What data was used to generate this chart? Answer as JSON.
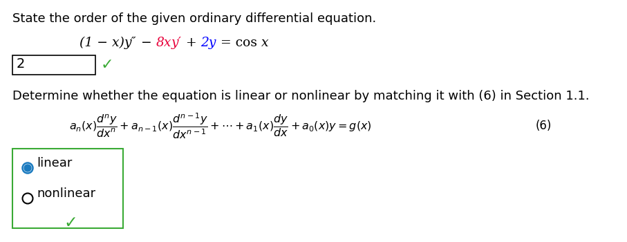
{
  "bg_color": "#ffffff",
  "title_text": "State the order of the given ordinary differential equation.",
  "title_fontsize": 13,
  "checkmark_color": "#3aaa35",
  "determine_text": "Determine whether the equation is linear or nonlinear by matching it with (6) in Section 1.1.",
  "determine_fontsize": 13,
  "linear_label": "linear",
  "nonlinear_label": "nonlinear",
  "radio_selected_color": "#1a7abf",
  "box_border_color": "#3aaa35",
  "red_color": "#e8003a",
  "blue_color": "#0000ff",
  "black_color": "#000000",
  "eq_parts": [
    {
      "text": "(1 − x)",
      "color": "#000000",
      "style": "italic"
    },
    {
      "text": "y″",
      "color": "#000000",
      "style": "italic"
    },
    {
      "text": " − ",
      "color": "#000000",
      "style": "normal"
    },
    {
      "text": "8x",
      "color": "#e8003a",
      "style": "italic"
    },
    {
      "text": "y′",
      "color": "#e8003a",
      "style": "italic"
    },
    {
      "text": " + ",
      "color": "#000000",
      "style": "normal"
    },
    {
      "text": "2y",
      "color": "#0000ff",
      "style": "italic"
    },
    {
      "text": " = cos ",
      "color": "#000000",
      "style": "normal"
    },
    {
      "text": "x",
      "color": "#000000",
      "style": "italic"
    }
  ],
  "figw": 9.07,
  "figh": 3.5,
  "dpi": 100
}
